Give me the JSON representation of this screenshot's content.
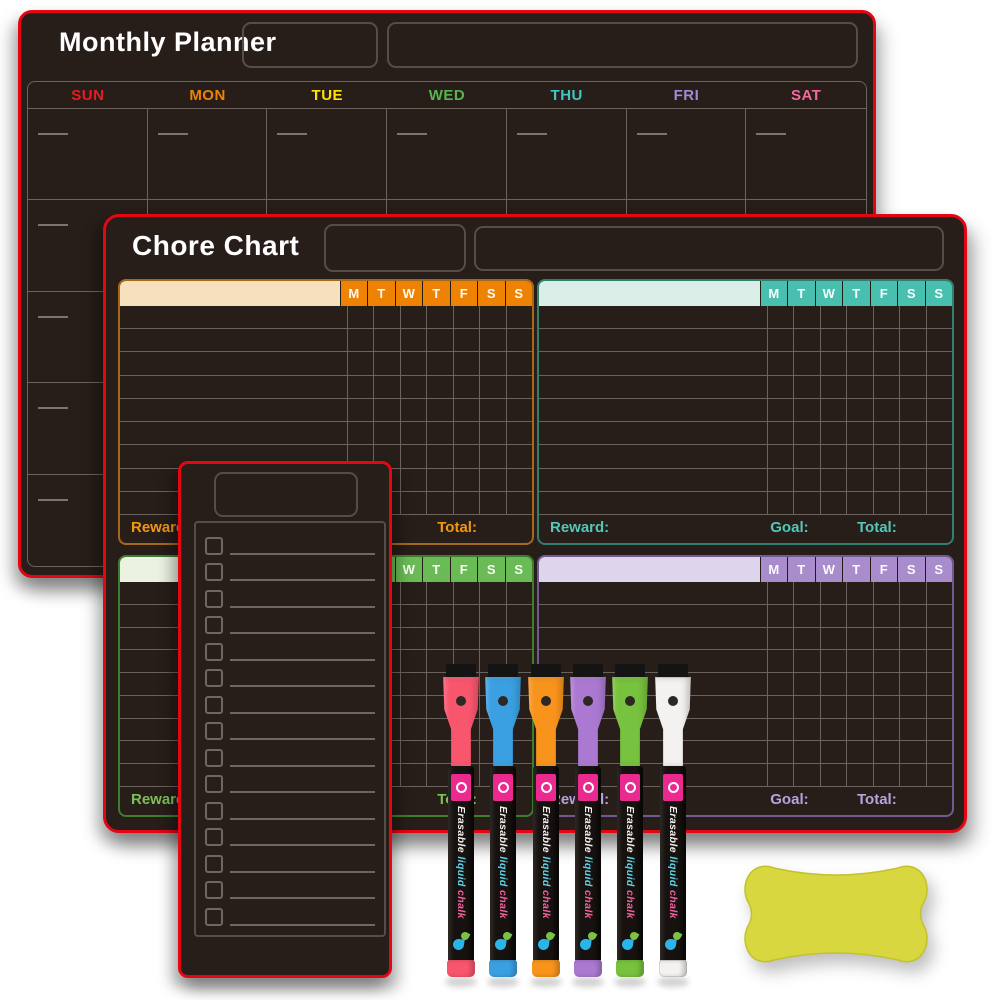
{
  "page": {
    "background": "#ffffff"
  },
  "monthly_planner": {
    "title": "Monthly Planner",
    "board_color": "#271d19",
    "border_color": "#e30613",
    "week_rows": 5,
    "days": [
      {
        "label": "SUN",
        "color": "#ea1c23"
      },
      {
        "label": "MON",
        "color": "#f08300"
      },
      {
        "label": "TUE",
        "color": "#ffe105"
      },
      {
        "label": "WED",
        "color": "#57b44e"
      },
      {
        "label": "THU",
        "color": "#41c7c3"
      },
      {
        "label": "FRI",
        "color": "#a28ad6"
      },
      {
        "label": "SAT",
        "color": "#f5699f"
      }
    ]
  },
  "chore_chart": {
    "title": "Chore Chart",
    "day_letters": [
      "M",
      "T",
      "W",
      "T",
      "F",
      "S",
      "S"
    ],
    "footer_labels": {
      "reward": "Reward:",
      "goal": "Goal:",
      "total": "Total:"
    },
    "grid_rows": 9,
    "quadrants": [
      {
        "name": "orange",
        "strong": "#ee8203",
        "light": "#f7e0bd",
        "border": "#a5691b",
        "label_color": "#f29810"
      },
      {
        "name": "teal",
        "strong": "#49c0af",
        "light": "#daeee7",
        "border": "#31806f",
        "label_color": "#52c8b8"
      },
      {
        "name": "green",
        "strong": "#6abb55",
        "light": "#ebf2e1",
        "border": "#407c2f",
        "label_color": "#7cc157"
      },
      {
        "name": "purple",
        "strong": "#a88ccb",
        "light": "#ded5ed",
        "border": "#6f5b90",
        "label_color": "#b7a3dd"
      }
    ]
  },
  "list_board": {
    "row_count": 15,
    "border_color": "#e30613"
  },
  "markers": {
    "label_color": "#ea2a8f",
    "brand_words": [
      {
        "text": "Erasable",
        "color": "#f2f0ee"
      },
      {
        "text": "liquid",
        "color": "#5fd2e8"
      },
      {
        "text": "chalk",
        "color": "#f2609e"
      }
    ],
    "items": [
      {
        "name": "pink",
        "color": "#f8566d"
      },
      {
        "name": "blue",
        "color": "#3aa0e2"
      },
      {
        "name": "orange",
        "color": "#f8941c"
      },
      {
        "name": "purple",
        "color": "#ab79d2"
      },
      {
        "name": "green",
        "color": "#77c23e"
      },
      {
        "name": "white",
        "color": "#f4f2f0"
      }
    ]
  },
  "eraser": {
    "shape": "bone",
    "color": "#d8d740",
    "edge_color": "#c2c12e"
  }
}
